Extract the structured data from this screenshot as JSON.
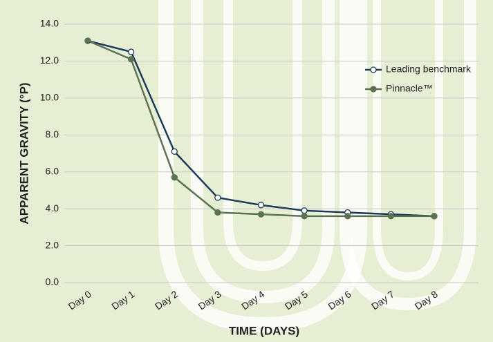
{
  "chart_data": {
    "type": "line",
    "x_label": "TIME (DAYS)",
    "y_label": "APPARENT GRAVITY (°P)",
    "categories": [
      "Day 0",
      "Day 1",
      "Day 2",
      "Day 3",
      "Day 4",
      "Day 5",
      "Day 6",
      "Day 7",
      "Day 8"
    ],
    "series": [
      {
        "name": "Leading benchmark",
        "color": "#1b3a5a",
        "marker": "open",
        "values": [
          13.1,
          12.5,
          7.1,
          4.6,
          4.2,
          3.9,
          3.8,
          3.7,
          3.6
        ]
      },
      {
        "name": "Pinnacle™",
        "color": "#5b7352",
        "marker": "filled",
        "values": [
          13.1,
          12.1,
          5.7,
          3.8,
          3.7,
          3.6,
          3.6,
          3.6,
          3.6
        ]
      }
    ],
    "ylim": [
      0,
      14
    ],
    "yticks": [
      {
        "value": 0,
        "label": "0.0"
      },
      {
        "value": 2,
        "label": "2.0"
      },
      {
        "value": 4,
        "label": "4.0"
      },
      {
        "value": 6,
        "label": "6.0"
      },
      {
        "value": 8,
        "label": "8.0"
      },
      {
        "value": 10,
        "label": "10.0"
      },
      {
        "value": 12,
        "label": "12.0"
      },
      {
        "value": 14,
        "label": "14.0"
      }
    ],
    "grid": true,
    "legend": "right"
  }
}
